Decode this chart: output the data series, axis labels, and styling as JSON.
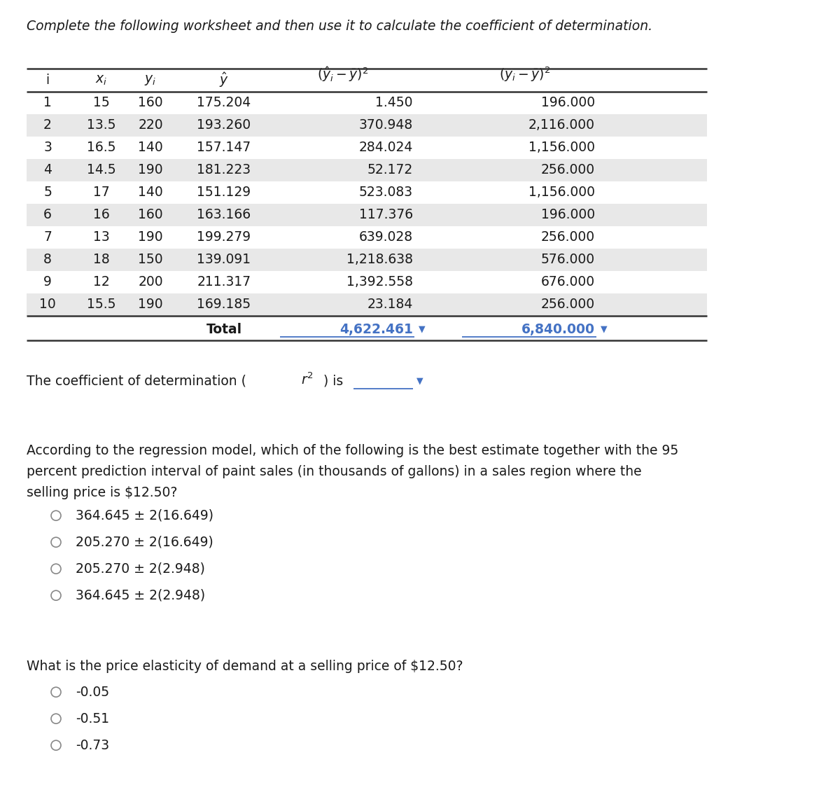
{
  "title": "Complete the following worksheet and then use it to calculate the coefficient of determination.",
  "rows": [
    [
      "1",
      "15",
      "160",
      "175.204",
      "1.450",
      "196.000"
    ],
    [
      "2",
      "13.5",
      "220",
      "193.260",
      "370.948",
      "2,116.000"
    ],
    [
      "3",
      "16.5",
      "140",
      "157.147",
      "284.024",
      "1,156.000"
    ],
    [
      "4",
      "14.5",
      "190",
      "181.223",
      "52.172",
      "256.000"
    ],
    [
      "5",
      "17",
      "140",
      "151.129",
      "523.083",
      "1,156.000"
    ],
    [
      "6",
      "16",
      "160",
      "163.166",
      "117.376",
      "196.000"
    ],
    [
      "7",
      "13",
      "190",
      "199.279",
      "639.028",
      "256.000"
    ],
    [
      "8",
      "18",
      "150",
      "139.091",
      "1,218.638",
      "576.000"
    ],
    [
      "9",
      "12",
      "200",
      "211.317",
      "1,392.558",
      "676.000"
    ],
    [
      "10",
      "15.5",
      "190",
      "169.185",
      "23.184",
      "256.000"
    ]
  ],
  "total_label": "Total",
  "total_col4": "4,622.461",
  "total_col5": "6,840.000",
  "question1": "According to the regression model, which of the following is the best estimate together with the 95\npercent prediction interval of paint sales (in thousands of gallons) in a sales region where the\nselling price is $12.50?",
  "q1_options": [
    "364.645 ± 2(16.649)",
    "205.270 ± 2(16.649)",
    "205.270 ± 2(2.948)",
    "364.645 ± 2(2.948)"
  ],
  "question2": "What is the price elasticity of demand at a selling price of $12.50?",
  "q2_options": [
    "-0.05",
    "-0.51",
    "-0.73"
  ],
  "bg_color": "#ffffff",
  "text_color": "#1a1a1a",
  "link_color": "#4472c4",
  "row_alt_color": "#e8e8e8",
  "row_white_color": "#ffffff",
  "font_size": 13.5,
  "title_font_size": 13.5
}
